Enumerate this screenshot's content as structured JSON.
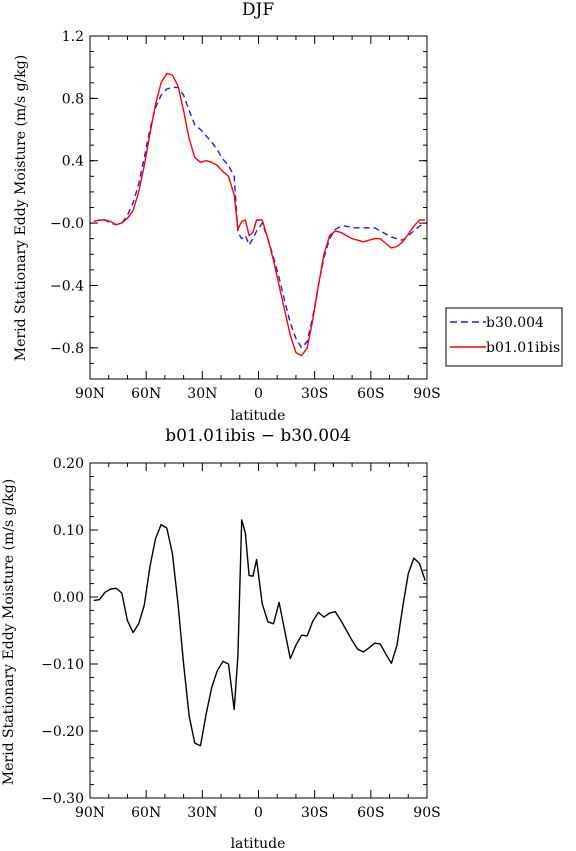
{
  "chart_data": [
    {
      "type": "line",
      "title": "DJF",
      "xlabel": "latitude",
      "ylabel": "Merid Stationary Eddy Moisture (m/s g/kg)",
      "xlim": [
        90,
        -90
      ],
      "ylim": [
        -1.0,
        1.2
      ],
      "xtick_labels": [
        "90N",
        "60N",
        "30N",
        "0",
        "30S",
        "60S",
        "90S"
      ],
      "ytick_labels": [
        "1.2",
        "0.8",
        "0.4",
        "−0.0",
        "−0.4",
        "−0.8"
      ],
      "legend_position": "right",
      "series": [
        {
          "name": "b30.004",
          "color": "#1a1aff",
          "dash": "dashed",
          "x": [
            88,
            85,
            82,
            79,
            76,
            73,
            70,
            67,
            64,
            61,
            58,
            55,
            52,
            49,
            46,
            43,
            40,
            37,
            34,
            31,
            28,
            25,
            22,
            19,
            16,
            13,
            11,
            9,
            7,
            5,
            3,
            1,
            -2,
            -5,
            -8,
            -11,
            -14,
            -17,
            -20,
            -23,
            -26,
            -29,
            -32,
            -35,
            -38,
            -41,
            -44,
            -47,
            -50,
            -53,
            -56,
            -59,
            -62,
            -65,
            -68,
            -71,
            -74,
            -77,
            -80,
            -83,
            -86,
            -89
          ],
          "y": [
            0.01,
            0.02,
            0.02,
            0.0,
            -0.01,
            0.0,
            0.05,
            0.13,
            0.25,
            0.42,
            0.6,
            0.74,
            0.82,
            0.86,
            0.87,
            0.87,
            0.82,
            0.72,
            0.63,
            0.6,
            0.56,
            0.52,
            0.47,
            0.41,
            0.37,
            0.3,
            -0.06,
            -0.1,
            -0.08,
            -0.14,
            -0.1,
            -0.05,
            0.0,
            -0.1,
            -0.22,
            -0.35,
            -0.5,
            -0.64,
            -0.74,
            -0.8,
            -0.76,
            -0.6,
            -0.4,
            -0.22,
            -0.1,
            -0.04,
            -0.02,
            -0.02,
            -0.03,
            -0.03,
            -0.03,
            -0.03,
            -0.03,
            -0.05,
            -0.07,
            -0.09,
            -0.1,
            -0.11,
            -0.08,
            -0.05,
            -0.02,
            0.0
          ]
        },
        {
          "name": "b01.01ibis",
          "color": "#ff0000",
          "dash": "solid",
          "x": [
            88,
            85,
            82,
            79,
            76,
            73,
            70,
            67,
            64,
            61,
            58,
            55,
            52,
            49,
            46,
            43,
            40,
            37,
            34,
            31,
            28,
            25,
            22,
            19,
            16,
            13,
            11,
            9,
            7,
            5,
            3,
            1,
            -2,
            -5,
            -8,
            -11,
            -14,
            -17,
            -20,
            -23,
            -26,
            -29,
            -32,
            -35,
            -38,
            -41,
            -44,
            -47,
            -50,
            -53,
            -56,
            -59,
            -62,
            -65,
            -68,
            -71,
            -74,
            -77,
            -80,
            -83,
            -86,
            -89
          ],
          "y": [
            0.01,
            0.02,
            0.02,
            0.01,
            -0.01,
            0.0,
            0.03,
            0.08,
            0.2,
            0.37,
            0.57,
            0.76,
            0.9,
            0.96,
            0.95,
            0.88,
            0.72,
            0.54,
            0.42,
            0.39,
            0.4,
            0.39,
            0.37,
            0.33,
            0.3,
            0.18,
            -0.04,
            0.01,
            0.02,
            -0.08,
            -0.06,
            0.02,
            0.02,
            -0.1,
            -0.24,
            -0.4,
            -0.56,
            -0.72,
            -0.83,
            -0.85,
            -0.8,
            -0.62,
            -0.4,
            -0.2,
            -0.08,
            -0.05,
            -0.06,
            -0.08,
            -0.1,
            -0.11,
            -0.12,
            -0.11,
            -0.1,
            -0.1,
            -0.13,
            -0.16,
            -0.15,
            -0.12,
            -0.07,
            -0.02,
            0.02,
            0.02
          ]
        }
      ]
    },
    {
      "type": "line",
      "title": "b01.01ibis − b30.004",
      "xlabel": "latitude",
      "ylabel": "Merid Stationary Eddy Moisture (m/s g/kg)",
      "xlim": [
        90,
        -90
      ],
      "ylim": [
        -0.3,
        0.2
      ],
      "xtick_labels": [
        "90N",
        "60N",
        "30N",
        "0",
        "30S",
        "60S",
        "90S"
      ],
      "ytick_labels": [
        "0.20",
        "0.10",
        "0.00",
        "−0.10",
        "−0.20",
        "−0.30"
      ],
      "series": [
        {
          "name": "",
          "color": "#000000",
          "dash": "solid",
          "x": [
            88,
            85,
            82,
            79,
            76,
            73,
            70,
            67,
            64,
            61,
            58,
            55,
            52,
            49,
            46,
            43,
            40,
            37,
            34,
            31,
            28,
            25,
            22,
            19,
            16,
            13,
            11,
            9,
            7,
            5,
            3,
            1,
            -2,
            -5,
            -8,
            -11,
            -14,
            -17,
            -20,
            -23,
            -26,
            -29,
            -32,
            -35,
            -38,
            -41,
            -44,
            -47,
            -50,
            -53,
            -56,
            -59,
            -62,
            -65,
            -68,
            -71,
            -74,
            -77,
            -80,
            -83,
            -86,
            -89
          ],
          "y": [
            -0.005,
            -0.004,
            0.007,
            0.012,
            0.013,
            0.006,
            -0.035,
            -0.053,
            -0.04,
            -0.012,
            0.045,
            0.087,
            0.108,
            0.103,
            0.065,
            -0.01,
            -0.1,
            -0.178,
            -0.218,
            -0.222,
            -0.175,
            -0.135,
            -0.11,
            -0.096,
            -0.1,
            -0.168,
            -0.088,
            0.115,
            0.095,
            0.032,
            0.031,
            0.056,
            -0.01,
            -0.037,
            -0.04,
            -0.008,
            -0.05,
            -0.092,
            -0.072,
            -0.057,
            -0.058,
            -0.036,
            -0.023,
            -0.03,
            -0.024,
            -0.022,
            -0.035,
            -0.05,
            -0.065,
            -0.078,
            -0.082,
            -0.076,
            -0.069,
            -0.07,
            -0.085,
            -0.099,
            -0.072,
            -0.015,
            0.035,
            0.058,
            0.05,
            0.025
          ]
        }
      ]
    }
  ]
}
